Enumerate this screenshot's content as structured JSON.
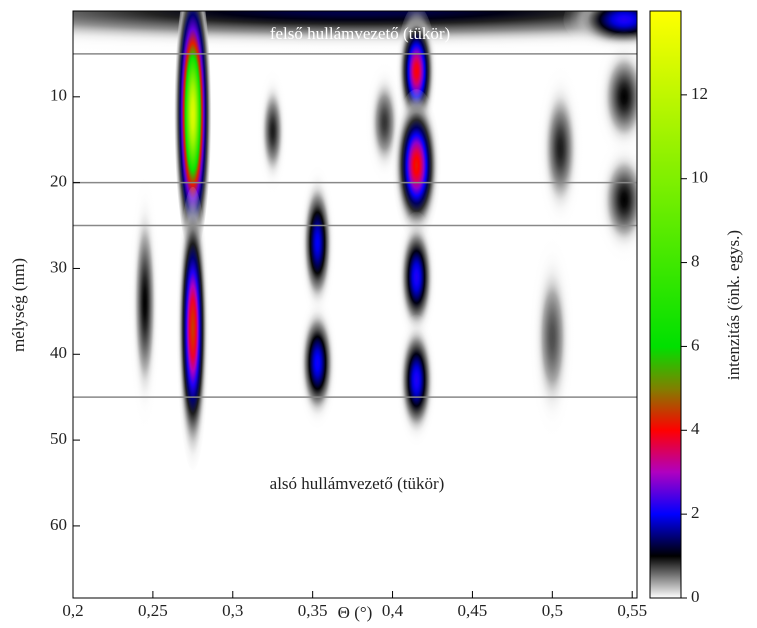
{
  "chart_data": {
    "type": "heatmap",
    "xlabel": "Θ (°)",
    "ylabel": "mélység (nm)",
    "colorbar_label": "intenzitás (önk. egys.)",
    "annotations": [
      "felső hullámvezető (tükör)",
      "alsó hullámvezető (tükör)"
    ],
    "xlim": [
      0.2,
      0.553
    ],
    "xticks": [
      {
        "value": 0.2,
        "label": "0,2"
      },
      {
        "value": 0.25,
        "label": "0,25"
      },
      {
        "value": 0.3,
        "label": "0,3"
      },
      {
        "value": 0.35,
        "label": "0,35"
      },
      {
        "value": 0.4,
        "label": "0,4"
      },
      {
        "value": 0.45,
        "label": "0,45"
      },
      {
        "value": 0.5,
        "label": "0,5"
      },
      {
        "value": 0.55,
        "label": "0,55"
      }
    ],
    "ylim": [
      68.4,
      0
    ],
    "yticks": [
      10,
      20,
      30,
      40,
      50,
      60
    ],
    "clim": [
      0,
      14
    ],
    "cticks": [
      0,
      2,
      4,
      6,
      8,
      10,
      12
    ],
    "colorscale": [
      [
        0,
        "#ffffff"
      ],
      [
        1,
        "#000000"
      ],
      [
        2,
        "#0000ff"
      ],
      [
        3,
        "#b000c0"
      ],
      [
        4,
        "#ff0000"
      ],
      [
        5,
        "#808000"
      ],
      [
        6,
        "#00e000"
      ],
      [
        14,
        "#ffff00"
      ]
    ],
    "hlines": [
      5,
      20,
      25,
      45
    ],
    "hline_color": "#888888",
    "peaks": [
      {
        "x": 0.38,
        "y": 0,
        "value": 1.3,
        "fwhm_x": 0.35,
        "fwhm_y": 4
      },
      {
        "x": 0.545,
        "y": 1,
        "value": 2.2,
        "fwhm_x": 0.03,
        "fwhm_y": 3
      },
      {
        "x": 0.245,
        "y": 34,
        "value": 1,
        "fwhm_x": 0.008,
        "fwhm_y": 12
      },
      {
        "x": 0.325,
        "y": 14,
        "value": 0.9,
        "fwhm_x": 0.008,
        "fwhm_y": 6
      },
      {
        "x": 0.395,
        "y": 13,
        "value": 0.8,
        "fwhm_x": 0.01,
        "fwhm_y": 6
      },
      {
        "x": 0.505,
        "y": 16,
        "value": 0.9,
        "fwhm_x": 0.012,
        "fwhm_y": 8
      },
      {
        "x": 0.545,
        "y": 10,
        "value": 1,
        "fwhm_x": 0.015,
        "fwhm_y": 6
      },
      {
        "x": 0.545,
        "y": 22,
        "value": 1,
        "fwhm_x": 0.015,
        "fwhm_y": 6
      },
      {
        "x": 0.5,
        "y": 38,
        "value": 0.7,
        "fwhm_x": 0.012,
        "fwhm_y": 10
      },
      {
        "x": 0.275,
        "y": 12,
        "value": 13,
        "fwhm_x": 0.009,
        "fwhm_y": 13
      },
      {
        "x": 0.275,
        "y": 37,
        "value": 4.5,
        "fwhm_x": 0.008,
        "fwhm_y": 13
      },
      {
        "x": 0.415,
        "y": 7,
        "value": 4,
        "fwhm_x": 0.01,
        "fwhm_y": 6
      },
      {
        "x": 0.415,
        "y": 18,
        "value": 4.2,
        "fwhm_x": 0.012,
        "fwhm_y": 7
      },
      {
        "x": 0.415,
        "y": 31,
        "value": 2.2,
        "fwhm_x": 0.01,
        "fwhm_y": 6
      },
      {
        "x": 0.415,
        "y": 43,
        "value": 2.2,
        "fwhm_x": 0.01,
        "fwhm_y": 6
      },
      {
        "x": 0.353,
        "y": 27,
        "value": 2,
        "fwhm_x": 0.009,
        "fwhm_y": 7
      },
      {
        "x": 0.353,
        "y": 41,
        "value": 2.1,
        "fwhm_x": 0.01,
        "fwhm_y": 6
      }
    ]
  }
}
